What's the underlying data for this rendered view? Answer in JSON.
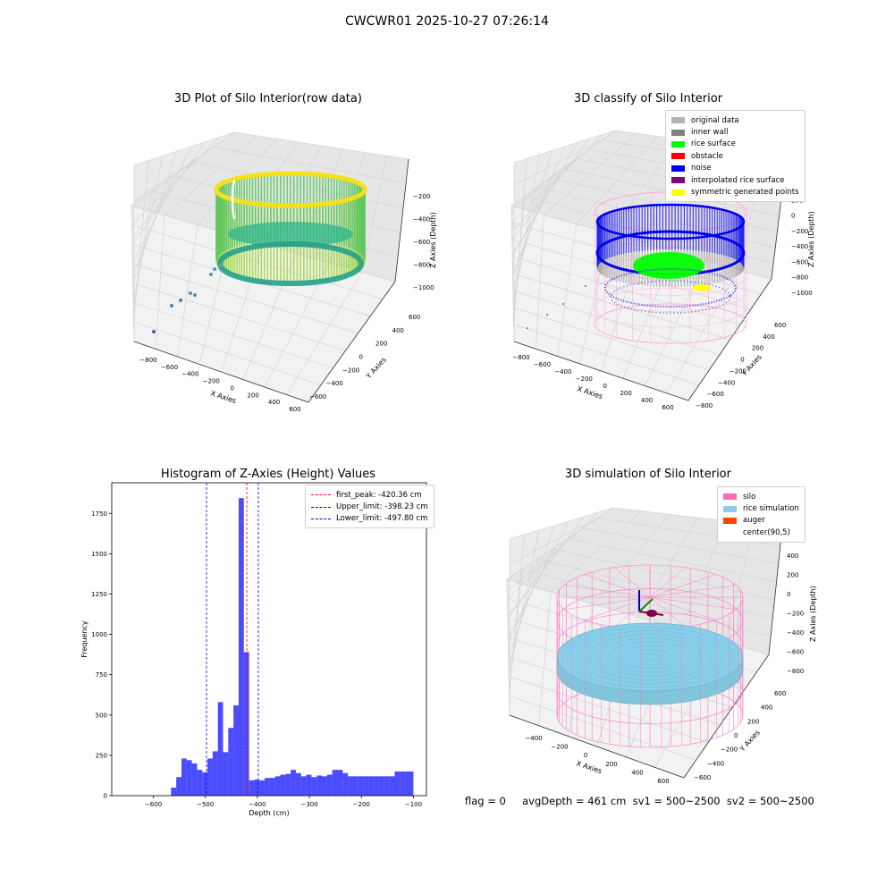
{
  "suptitle": "CWCWR01 2025-10-27 07:26:14",
  "footer": "flag = 0     avgDepth = 461 cm  sv1 = 500~2500  sv2 = 500~2500",
  "panels": {
    "raw": {
      "title": "3D Plot of Silo Interior(row data)",
      "xlabel": "X Axies",
      "ylabel": "Y Axies",
      "zlabel": "Z Axies (Depth)",
      "xticks": [
        "−800",
        "−600",
        "−400",
        "−200",
        "0",
        "200",
        "400",
        "600"
      ],
      "yticks": [
        "600",
        "400",
        "200",
        "0",
        "−200",
        "−400",
        "−600"
      ],
      "zticks": [
        "−200",
        "−400",
        "−600",
        "−800",
        "−1000"
      ]
    },
    "classify": {
      "title": "3D classify of Silo Interior",
      "xlabel": "X Axies",
      "ylabel": "Y Axies",
      "zlabel": "Z Axies (Depth)",
      "xticks": [
        "−800",
        "−600",
        "−400",
        "−200",
        "0",
        "200",
        "400",
        "600"
      ],
      "yticks": [
        "600",
        "400",
        "200",
        "0",
        "−200",
        "−400",
        "−600",
        "−800"
      ],
      "zticks": [
        "400",
        "200",
        "0",
        "−200",
        "−400",
        "−600",
        "−800",
        "−1000"
      ],
      "legend": [
        {
          "label": "original data",
          "color": "#b3b3b3"
        },
        {
          "label": "inner wall",
          "color": "#808080"
        },
        {
          "label": "rice surface",
          "color": "#00ff00"
        },
        {
          "label": "obstacle",
          "color": "#ff0000"
        },
        {
          "label": "noise",
          "color": "#0000ff"
        },
        {
          "label": "interpolated rice surface",
          "color": "#800080"
        },
        {
          "label": "symmetric generated points",
          "color": "#ffff00"
        }
      ]
    },
    "histogram": {
      "title": "Histogram of Z-Axies (Height) Values",
      "legend": [
        {
          "label": "first_peak: -420.36 cm",
          "color": "#ff0000"
        },
        {
          "label": "Upper_limit: -398.23 cm",
          "color": "#0000ff"
        },
        {
          "label": "Lower_limit: -497.80 cm",
          "color": "#0000ff"
        }
      ]
    },
    "simulation": {
      "title": "3D simulation of Silo Interior",
      "xlabel": "X Axies",
      "ylabel": "Y Axies",
      "zlabel": "Z Axies (Depth)",
      "xticks": [
        "−400",
        "−200",
        "0",
        "200",
        "400",
        "600"
      ],
      "yticks": [
        "600",
        "400",
        "200",
        "0",
        "−200",
        "−400",
        "−600"
      ],
      "zticks": [
        "400",
        "200",
        "0",
        "−200",
        "−400",
        "−600",
        "−800"
      ],
      "legend": [
        {
          "label": "silo",
          "color": "#ff69b4"
        },
        {
          "label": "rice simulation",
          "color": "#87ceeb"
        },
        {
          "label": "auger",
          "color": "#ff4500"
        },
        {
          "label": "center(90,5)",
          "color": ""
        }
      ]
    }
  },
  "chart_data": {
    "type": "bar",
    "title": "Histogram of Z-Axies (Height) Values",
    "xlabel": "Depth (cm)",
    "ylabel": "Frequency",
    "xlim": [
      -680,
      -75
    ],
    "ylim": [
      0,
      1940
    ],
    "xticks": [
      -600,
      -500,
      -400,
      -300,
      -200,
      -100
    ],
    "yticks": [
      0,
      250,
      500,
      750,
      1000,
      1250,
      1500,
      1750
    ],
    "bar_color": "#0000ff",
    "bar_alpha": 0.7,
    "bin_edges": [
      -566,
      -556,
      -546,
      -536,
      -526,
      -516,
      -506,
      -496,
      -486,
      -476,
      -466,
      -456,
      -446,
      -436,
      -426,
      -416,
      -406,
      -396,
      -386,
      -376,
      -366,
      -356,
      -346,
      -336,
      -326,
      -316,
      -306,
      -296,
      -286,
      -276,
      -266,
      -256,
      -246,
      -236,
      -226,
      -216,
      -206,
      -196,
      -186,
      -176,
      -166,
      -156,
      -146,
      -136,
      -126,
      -116,
      -100
    ],
    "values": [
      50,
      115,
      230,
      220,
      200,
      160,
      145,
      230,
      275,
      580,
      270,
      420,
      560,
      1845,
      890,
      95,
      100,
      95,
      110,
      110,
      120,
      130,
      135,
      160,
      140,
      120,
      130,
      115,
      125,
      120,
      130,
      160,
      160,
      140,
      120,
      120,
      120,
      120,
      120,
      120,
      120,
      120,
      120,
      150,
      150,
      150
    ],
    "vlines": [
      {
        "label": "first_peak: -420.36 cm",
        "x": -420.36,
        "color": "#ff0000"
      },
      {
        "label": "Upper_limit: -398.23 cm",
        "x": -398.23,
        "color": "#0000ff"
      },
      {
        "label": "Lower_limit: -497.80 cm",
        "x": -497.8,
        "color": "#0000ff"
      }
    ],
    "legend_position": "upper right"
  }
}
